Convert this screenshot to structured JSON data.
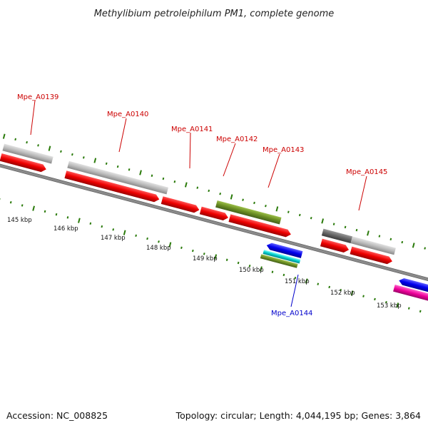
{
  "title": "Methylibium petroleiphilum PM1, complete genome",
  "footer": {
    "accession": "Accession: NC_008825",
    "summary": "Topology: circular; Length: 4,044,195 bp; Genes: 3,864"
  },
  "colors": {
    "label_red": "#cc0000",
    "label_blue": "#0000cc",
    "tick_green": "#2a7a0a",
    "backbone": "#808080",
    "red_gene": "#ee0000",
    "gray_gene": "#bbbbbb",
    "dark_gray_gene": "#666666",
    "olive_gene": "#6b8e23",
    "blue_gene": "#0000ee",
    "cyan_gene": "#00cccc",
    "magenta_gene": "#ee0099"
  },
  "ticks": [
    "145 kbp",
    "146 kbp",
    "147 kbp",
    "148 kbp",
    "149 kbp",
    "150 kbp",
    "151 kbp",
    "152 kbp",
    "153 kbp"
  ],
  "gene_labels": [
    {
      "text": "Mpe_A0139",
      "color": "red"
    },
    {
      "text": "Mpe_A0140",
      "color": "red"
    },
    {
      "text": "Mpe_A0141",
      "color": "red"
    },
    {
      "text": "Mpe_A0142",
      "color": "red"
    },
    {
      "text": "Mpe_A0143",
      "color": "red"
    },
    {
      "text": "Mpe_A0145",
      "color": "red"
    },
    {
      "text": "Mpe_A0144",
      "color": "blue"
    }
  ]
}
